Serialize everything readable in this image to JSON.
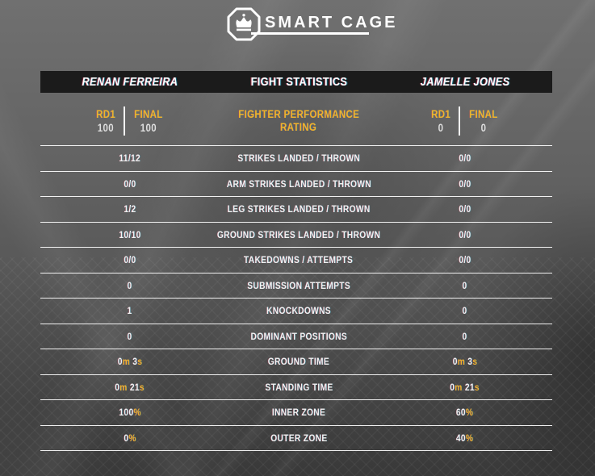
{
  "logo": {
    "brand": "SMART CAGE",
    "icon": "crown-octagon-icon"
  },
  "header": {
    "left_fighter": "RENAN FERREIRA",
    "title": "FIGHT STATISTICS",
    "right_fighter": "JAMELLE JONES"
  },
  "rating": {
    "title_line1": "FIGHTER PERFORMANCE",
    "title_line2": "RATING",
    "col_labels": {
      "rd1": "RD1",
      "final": "FINAL"
    },
    "left": {
      "rd1": "100",
      "final": "100"
    },
    "right": {
      "rd1": "0",
      "final": "0"
    }
  },
  "colors": {
    "gold": "#EFB32C",
    "white": "#FFFFFF",
    "bar_background": "#1B1B1B",
    "divider_line": "#FFFFFF"
  },
  "rows": [
    {
      "label": "STRIKES LANDED / THROWN",
      "left": [
        [
          "11/12",
          "w"
        ]
      ],
      "right": [
        [
          "0/0",
          "w"
        ]
      ]
    },
    {
      "label": "ARM STRIKES LANDED / THROWN",
      "left": [
        [
          "0/0",
          "w"
        ]
      ],
      "right": [
        [
          "0/0",
          "w"
        ]
      ]
    },
    {
      "label": "LEG STRIKES LANDED / THROWN",
      "left": [
        [
          "1/2",
          "w"
        ]
      ],
      "right": [
        [
          "0/0",
          "w"
        ]
      ]
    },
    {
      "label": "GROUND STRIKES LANDED / THROWN",
      "left": [
        [
          "10/10",
          "w"
        ]
      ],
      "right": [
        [
          "0/0",
          "w"
        ]
      ]
    },
    {
      "label": "TAKEDOWNS / ATTEMPTS",
      "left": [
        [
          "0/0",
          "w"
        ]
      ],
      "right": [
        [
          "0/0",
          "w"
        ]
      ]
    },
    {
      "label": "SUBMISSION ATTEMPTS",
      "left": [
        [
          "0",
          "w"
        ]
      ],
      "right": [
        [
          "0",
          "w"
        ]
      ]
    },
    {
      "label": "KNOCKDOWNS",
      "left": [
        [
          "1",
          "w"
        ]
      ],
      "right": [
        [
          "0",
          "w"
        ]
      ]
    },
    {
      "label": "DOMINANT POSITIONS",
      "left": [
        [
          "0",
          "w"
        ]
      ],
      "right": [
        [
          "0",
          "w"
        ]
      ]
    },
    {
      "label": "GROUND TIME",
      "left": [
        [
          "0",
          "w"
        ],
        [
          "m",
          "g"
        ],
        [
          " 3",
          "w"
        ],
        [
          "s",
          "g"
        ]
      ],
      "right": [
        [
          "0",
          "w"
        ],
        [
          "m",
          "g"
        ],
        [
          " 3",
          "w"
        ],
        [
          "s",
          "g"
        ]
      ]
    },
    {
      "label": "STANDING TIME",
      "left": [
        [
          "0",
          "w"
        ],
        [
          "m",
          "g"
        ],
        [
          " 21",
          "w"
        ],
        [
          "s",
          "g"
        ]
      ],
      "right": [
        [
          "0",
          "w"
        ],
        [
          "m",
          "g"
        ],
        [
          " 21",
          "w"
        ],
        [
          "s",
          "g"
        ]
      ]
    },
    {
      "label": "INNER ZONE",
      "left": [
        [
          "100",
          "w"
        ],
        [
          "%",
          "g"
        ]
      ],
      "right": [
        [
          "60",
          "w"
        ],
        [
          "%",
          "g"
        ]
      ]
    },
    {
      "label": "OUTER ZONE",
      "left": [
        [
          "0",
          "w"
        ],
        [
          "%",
          "g"
        ]
      ],
      "right": [
        [
          "40",
          "w"
        ],
        [
          "%",
          "g"
        ]
      ]
    }
  ]
}
